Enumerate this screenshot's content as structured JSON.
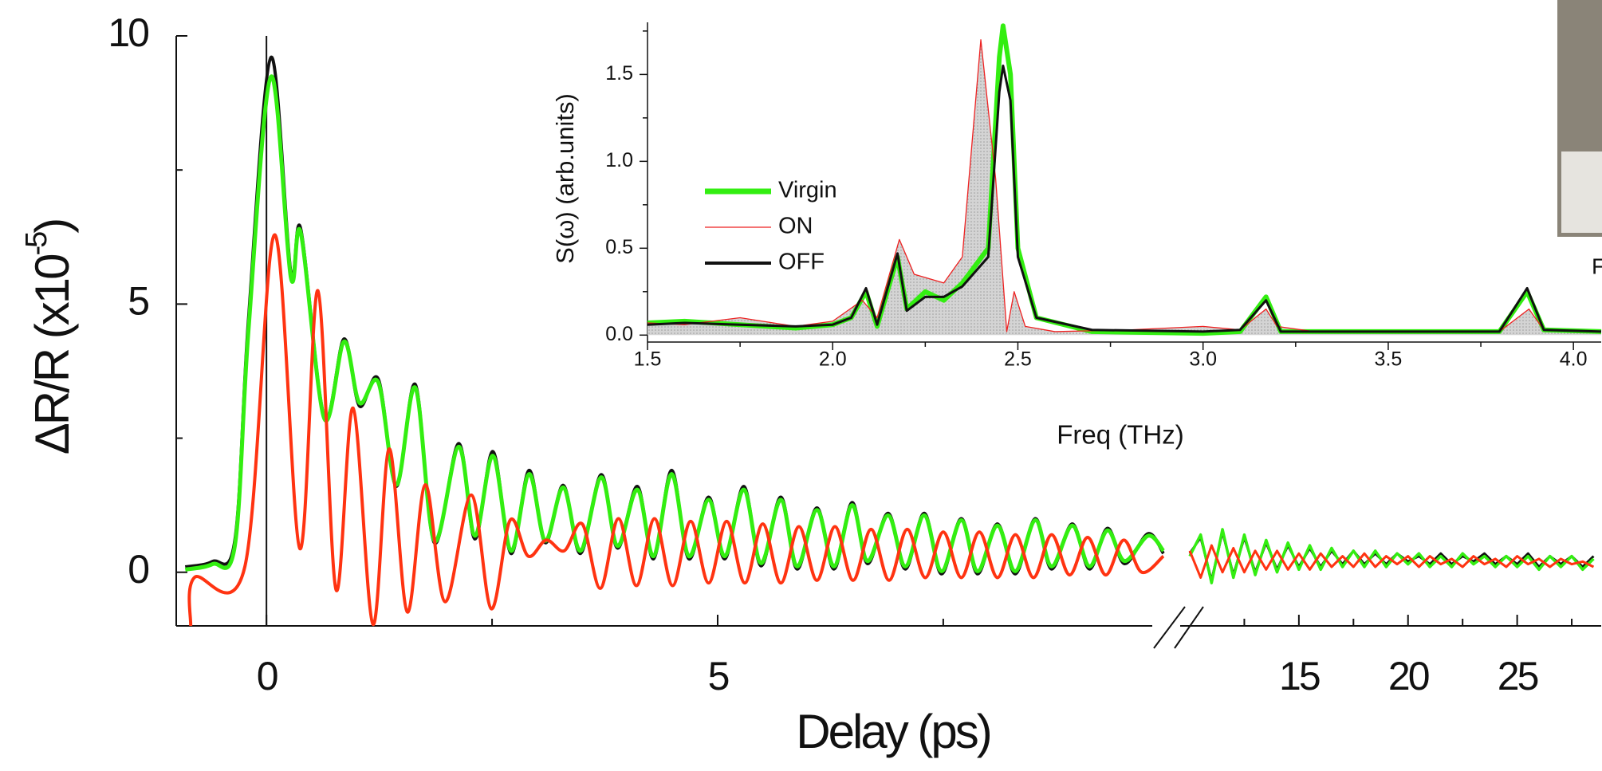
{
  "chart_data": [
    {
      "type": "line",
      "y_label": [
        "ΔR/R (x10",
        "-5",
        ")"
      ],
      "xlim": [
        -1,
        9.94
      ],
      "ylim": [
        -1,
        10
      ],
      "xticks": [
        0,
        5
      ],
      "xminorticks": [
        2.5,
        7.5
      ],
      "yticks": [
        0,
        5,
        10
      ],
      "yminorticks": [
        2.5,
        7.5
      ],
      "x": [
        -0.9,
        -0.6,
        -0.35,
        -0.2,
        0.05,
        0.27,
        0.38,
        0.64,
        0.86,
        1.03,
        1.24,
        1.44,
        1.65,
        1.86,
        2.13,
        2.31,
        2.51,
        2.71,
        2.91,
        3.09,
        3.29,
        3.48,
        3.71,
        3.89,
        4.11,
        4.29,
        4.49,
        4.68,
        4.9,
        5.08,
        5.29,
        5.48,
        5.7,
        5.88,
        6.1,
        6.29,
        6.49,
        6.66,
        6.89,
        7.08,
        7.29,
        7.48,
        7.7,
        7.88,
        8.1,
        8.3,
        8.52,
        8.7,
        8.93,
        9.12,
        9.32,
        9.51,
        9.77,
        9.94
      ],
      "series": [
        {
          "color": "#111111",
          "values": [
            0.1,
            0.2,
            0.6,
            4.7,
            9.6,
            5.6,
            6.4,
            2.9,
            4.35,
            3.1,
            3.6,
            1.6,
            3.5,
            0.55,
            2.4,
            0.62,
            2.25,
            0.35,
            1.9,
            0.55,
            1.62,
            0.35,
            1.82,
            0.45,
            1.6,
            0.25,
            1.9,
            0.25,
            1.4,
            0.25,
            1.6,
            0.12,
            1.4,
            0.06,
            1.2,
            0.06,
            1.3,
            0.16,
            1.1,
            0.06,
            1.1,
            -0.03,
            1.0,
            -0.03,
            0.9,
            -0.03,
            1.0,
            0.06,
            0.9,
            0.06,
            0.82,
            0.16,
            0.72,
            0.35
          ]
        },
        {
          "color": "#33ee11",
          "values": [
            0.05,
            0.15,
            0.5,
            4.5,
            9.24,
            5.5,
            6.33,
            2.87,
            4.3,
            3.16,
            3.54,
            1.63,
            3.44,
            0.59,
            2.34,
            0.68,
            2.17,
            0.4,
            1.83,
            0.59,
            1.58,
            0.4,
            1.77,
            0.49,
            1.54,
            0.3,
            1.83,
            0.3,
            1.35,
            0.3,
            1.54,
            0.17,
            1.35,
            0.11,
            1.16,
            0.11,
            1.25,
            0.21,
            1.06,
            0.11,
            1.06,
            0.02,
            0.97,
            0.02,
            0.87,
            0.02,
            0.97,
            0.11,
            0.87,
            0.11,
            0.78,
            0.21,
            0.68,
            0.4
          ]
        },
        {
          "color": "#ff3311",
          "x": [
            -0.84,
            -0.8,
            -0.24,
            0.09,
            0.37,
            0.57,
            0.77,
            0.96,
            1.18,
            1.36,
            1.56,
            1.76,
            1.98,
            2.27,
            2.49,
            2.7,
            2.9,
            3.1,
            3.3,
            3.5,
            3.7,
            3.9,
            4.1,
            4.3,
            4.5,
            4.7,
            4.9,
            5.1,
            5.3,
            5.5,
            5.7,
            5.9,
            6.1,
            6.3,
            6.5,
            6.7,
            6.9,
            7.1,
            7.3,
            7.5,
            7.7,
            7.9,
            8.1,
            8.3,
            8.5,
            8.7,
            8.9,
            9.1,
            9.3,
            9.5,
            9.7,
            9.94
          ],
          "values": [
            -1,
            -0.1,
            0.1,
            6.29,
            0.44,
            5.25,
            -0.32,
            3.06,
            -0.97,
            2.3,
            -0.74,
            1.63,
            -0.55,
            1.44,
            -0.68,
            0.97,
            0.3,
            0.6,
            0.4,
            0.9,
            -0.3,
            1.0,
            -0.25,
            1.0,
            -0.25,
            0.95,
            -0.2,
            0.95,
            -0.2,
            0.9,
            -0.2,
            0.85,
            -0.15,
            0.85,
            -0.15,
            0.8,
            -0.15,
            0.8,
            -0.1,
            0.75,
            -0.1,
            0.75,
            -0.1,
            0.7,
            -0.1,
            0.7,
            -0.05,
            0.65,
            -0.05,
            0.6,
            0.0,
            0.3
          ]
        }
      ]
    },
    {
      "type": "line",
      "x_label": "Delay (ps)",
      "xlim": [
        10,
        28.85
      ],
      "ylim": [
        -1,
        10
      ],
      "xticks": [
        15,
        20,
        25
      ],
      "xminorticks": [
        12.5,
        17.5,
        22.5,
        27.5
      ],
      "x": [
        10,
        10.5,
        11,
        11.5,
        12,
        12.5,
        13,
        13.5,
        14,
        14.5,
        15,
        15.5,
        16,
        16.5,
        17,
        17.5,
        18,
        18.5,
        19,
        19.5,
        20,
        20.5,
        21,
        21.5,
        22,
        22.5,
        23,
        23.5,
        24,
        24.5,
        25,
        25.5,
        26,
        26.5,
        27,
        27.5,
        28,
        28.5
      ],
      "series": [
        {
          "color": "#111111",
          "values": [
            0.35,
            0.65,
            -0.15,
            0.75,
            -0.05,
            0.65,
            0.0,
            0.55,
            0.05,
            0.5,
            0.1,
            0.45,
            0.1,
            0.4,
            0.15,
            0.4,
            0.15,
            0.35,
            0.15,
            0.35,
            0.2,
            0.3,
            0.15,
            0.35,
            0.15,
            0.3,
            0.2,
            0.35,
            0.15,
            0.3,
            0.15,
            0.35,
            0.1,
            0.3,
            0.15,
            0.3,
            0.1,
            0.3
          ]
        },
        {
          "color": "#33ee11",
          "values": [
            0.3,
            0.7,
            -0.2,
            0.8,
            -0.1,
            0.7,
            -0.05,
            0.6,
            0.0,
            0.55,
            0.05,
            0.5,
            0.05,
            0.45,
            0.1,
            0.4,
            0.1,
            0.4,
            0.1,
            0.35,
            0.15,
            0.35,
            0.1,
            0.3,
            0.1,
            0.35,
            0.15,
            0.3,
            0.1,
            0.3,
            0.1,
            0.3,
            0.05,
            0.3,
            0.1,
            0.3,
            0.05,
            0.25
          ]
        },
        {
          "color": "#ff3311",
          "values": [
            0.4,
            -0.1,
            0.5,
            0.0,
            0.45,
            0.0,
            0.4,
            0.05,
            0.4,
            0.05,
            0.35,
            0.05,
            0.35,
            0.1,
            0.3,
            0.1,
            0.35,
            0.1,
            0.3,
            0.15,
            0.3,
            0.1,
            0.3,
            0.15,
            0.25,
            0.1,
            0.3,
            0.15,
            0.25,
            0.1,
            0.3,
            0.15,
            0.25,
            0.1,
            0.25,
            0.15,
            0.2,
            0.1
          ]
        }
      ]
    },
    {
      "type": "line",
      "x_label": "Freq (THz)",
      "y_label": "S(ω) (arb.units)",
      "xlim": [
        1.5,
        4.075
      ],
      "ylim": [
        -0.04,
        1.8
      ],
      "xticks": [
        1.5,
        {
          "value": 2,
          "label": "2.0"
        },
        2.5,
        {
          "value": 3,
          "label": "3.0"
        },
        3.5,
        {
          "value": 4,
          "label": "4.0"
        }
      ],
      "xminorticks": [
        1.75,
        2.25,
        2.75,
        3.25,
        3.75
      ],
      "yticks": [
        {
          "value": 0,
          "label": "0.0"
        },
        0.5,
        {
          "value": 1,
          "label": "1.0"
        },
        1.5
      ],
      "yminorticks": [
        0.25,
        0.75,
        1.25,
        1.75
      ],
      "legend": "upper left",
      "series": [
        {
          "name": "Virgin",
          "color": "#33ee11",
          "x": [
            1.5,
            1.6,
            1.75,
            1.9,
            2.0,
            2.05,
            2.09,
            2.12,
            2.175,
            2.2,
            2.25,
            2.3,
            2.35,
            2.42,
            2.45,
            2.46,
            2.48,
            2.5,
            2.55,
            2.7,
            3.0,
            3.1,
            3.17,
            3.21,
            3.5,
            3.8,
            3.875,
            3.92,
            4.075
          ],
          "values": [
            0.07,
            0.08,
            0.06,
            0.04,
            0.06,
            0.1,
            0.25,
            0.05,
            0.45,
            0.15,
            0.25,
            0.2,
            0.3,
            0.5,
            1.6,
            1.78,
            1.5,
            0.5,
            0.1,
            0.02,
            0.01,
            0.02,
            0.22,
            0.02,
            0.02,
            0.02,
            0.25,
            0.03,
            0.02
          ]
        },
        {
          "name": "ON",
          "color": "#ee2222",
          "fill": "#d4d4d4",
          "x": [
            1.5,
            1.6,
            1.75,
            1.9,
            2.0,
            2.08,
            2.12,
            2.18,
            2.22,
            2.3,
            2.35,
            2.4,
            2.44,
            2.47,
            2.49,
            2.52,
            2.6,
            2.8,
            3.0,
            3.1,
            3.17,
            3.2,
            3.3,
            3.5,
            3.8,
            3.88,
            3.92,
            4.075
          ],
          "values": [
            0.07,
            0.06,
            0.1,
            0.05,
            0.08,
            0.2,
            0.1,
            0.55,
            0.35,
            0.3,
            0.45,
            1.7,
            0.9,
            0.02,
            0.25,
            0.05,
            0.02,
            0.03,
            0.05,
            0.03,
            0.15,
            0.05,
            0.02,
            0.02,
            0.02,
            0.15,
            0.03,
            0.02
          ]
        },
        {
          "name": "OFF",
          "color": "#111111",
          "x": [
            1.5,
            1.6,
            1.75,
            1.9,
            2.0,
            2.05,
            2.09,
            2.12,
            2.175,
            2.2,
            2.25,
            2.3,
            2.35,
            2.42,
            2.45,
            2.46,
            2.48,
            2.5,
            2.55,
            2.7,
            3.0,
            3.1,
            3.17,
            3.21,
            3.5,
            3.8,
            3.875,
            3.92,
            4.075
          ],
          "values": [
            0.06,
            0.07,
            0.06,
            0.05,
            0.06,
            0.1,
            0.27,
            0.06,
            0.47,
            0.14,
            0.22,
            0.22,
            0.28,
            0.45,
            1.4,
            1.55,
            1.35,
            0.45,
            0.1,
            0.03,
            0.02,
            0.03,
            0.2,
            0.02,
            0.02,
            0.02,
            0.27,
            0.03,
            0.02
          ]
        }
      ]
    }
  ],
  "photo_caption": "F"
}
